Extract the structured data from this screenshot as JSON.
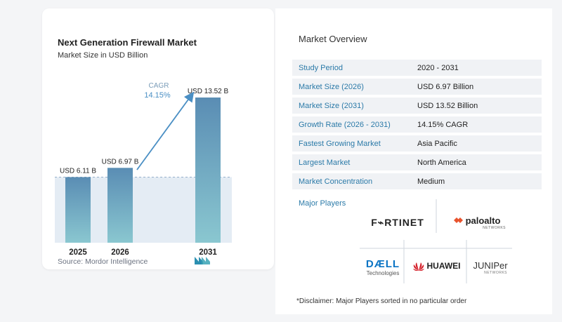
{
  "chart": {
    "title": "Next Generation Firewall Market",
    "subtitle": "Market Size in USD Billion",
    "source": "Source:  Mordor Intelligence",
    "cagr_label": "CAGR",
    "cagr_value": "14.15%"
  },
  "chart_data": {
    "type": "bar",
    "categories": [
      "2025",
      "2026",
      "2031"
    ],
    "values": [
      6.11,
      6.97,
      13.52
    ],
    "data_labels": [
      "USD 6.11 B",
      "USD 6.97 B",
      "USD 13.52 B"
    ],
    "title": "Next Generation Firewall Market",
    "subtitle": "Market Size in USD Billion",
    "ylim": [
      0,
      13.52
    ],
    "grid": false,
    "annotation": "CAGR 14.15%"
  },
  "overview": {
    "title": "Market Overview",
    "rows": [
      {
        "label": "Study Period",
        "value": "2020 - 2031"
      },
      {
        "label": "Market Size (2026)",
        "value": "USD 6.97 Billion"
      },
      {
        "label": "Market Size (2031)",
        "value": "USD 13.52 Billion"
      },
      {
        "label": "Growth Rate (2026 - 2031)",
        "value": "14.15% CAGR"
      },
      {
        "label": "Fastest Growing Market",
        "value": "Asia Pacific"
      },
      {
        "label": "Largest Market",
        "value": "North America"
      },
      {
        "label": "Market Concentration",
        "value": "Medium"
      }
    ],
    "players_title": "Major Players",
    "disclaimer": "*Disclaimer: Major Players sorted in no particular order"
  },
  "players": {
    "fortinet": "F⌁RTINET",
    "paloalto": "paloalto",
    "paloalto_sub": "NETWORKS",
    "dell": "DÆLL",
    "dell_sub": "Technologies",
    "huawei": "HUAWEI",
    "juniper": "JUNIPer",
    "juniper_sub": "NETWORKS"
  },
  "colors": {
    "bar_top": "#5b8fb5",
    "bar_bottom": "#86c5cf",
    "shade": "#e4ecf4",
    "accent": "#2b7aa8",
    "arrow": "#4a8fc4",
    "fortinet_red": "#d92b2b",
    "huawei_red": "#d4202a",
    "dell_blue": "#0b74c4"
  }
}
